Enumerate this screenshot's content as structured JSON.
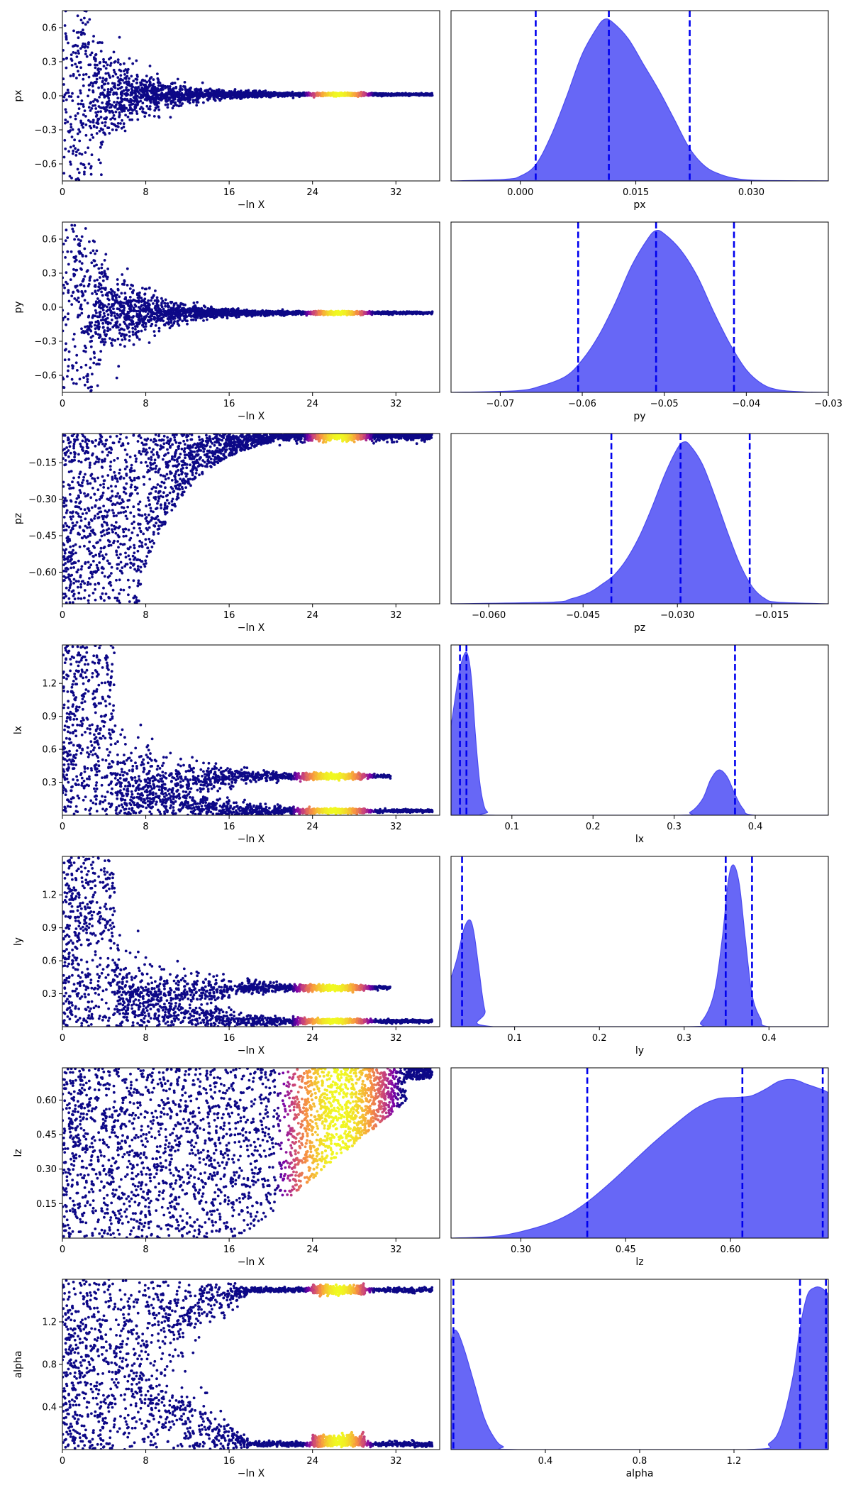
{
  "figure": {
    "layout": "7 rows x 2 columns; left column: trace scatter vs -ln X colored by sample weight (plasma colormap); right column: filled 1-D marginal posterior with dashed quantile lines"
  },
  "colors": {
    "low": "#0d0887",
    "mid": "#cc4778",
    "high": "#f0f921",
    "posterior_fill": "#5a5af5",
    "posterior_edge": "#4b4bf0",
    "quantile_line": "#0000ee"
  },
  "chart_data": [
    {
      "type": "scatter",
      "param": "px",
      "xlabel": "−ln X",
      "ylabel": "px",
      "xlim": [
        0,
        36.2
      ],
      "ylim": [
        -0.75,
        0.75
      ],
      "xticks": [
        0,
        8,
        16,
        24,
        32
      ],
      "xtick_labels": [
        "0",
        "8",
        "16",
        "24",
        "32"
      ],
      "yticks": [
        -0.6,
        -0.3,
        0.0,
        0.3,
        0.6
      ],
      "ytick_labels": [
        "−0.6",
        "−0.3",
        "0.0",
        "0.3",
        "0.6"
      ],
      "trace": {
        "kind": "funnel",
        "center": 0.012,
        "x_max": 35.5,
        "bright_x": [
          24,
          29
        ]
      }
    },
    {
      "type": "area",
      "param": "px",
      "xlabel": "px",
      "xlim": [
        -0.009,
        0.04
      ],
      "xticks": [
        0.0,
        0.015,
        0.03
      ],
      "xtick_labels": [
        "0.000",
        "0.015",
        "0.030"
      ],
      "density": {
        "x": [
          -0.009,
          -0.002,
          0.0,
          0.002,
          0.004,
          0.006,
          0.008,
          0.01,
          0.011,
          0.012,
          0.014,
          0.016,
          0.018,
          0.02,
          0.022,
          0.024,
          0.026,
          0.028,
          0.03,
          0.033,
          0.04
        ],
        "y": [
          0,
          0.01,
          0.03,
          0.1,
          0.28,
          0.52,
          0.78,
          0.95,
          1.0,
          0.98,
          0.88,
          0.72,
          0.56,
          0.38,
          0.2,
          0.09,
          0.04,
          0.015,
          0.005,
          0.002,
          0.001
        ]
      },
      "quantiles": [
        0.002,
        0.0115,
        0.022
      ]
    },
    {
      "type": "scatter",
      "param": "py",
      "xlabel": "−ln X",
      "ylabel": "py",
      "xlim": [
        0,
        36.2
      ],
      "ylim": [
        -0.75,
        0.75
      ],
      "xticks": [
        0,
        8,
        16,
        24,
        32
      ],
      "xtick_labels": [
        "0",
        "8",
        "16",
        "24",
        "32"
      ],
      "yticks": [
        -0.6,
        -0.3,
        0.0,
        0.3,
        0.6
      ],
      "ytick_labels": [
        "−0.6",
        "−0.3",
        "0.0",
        "0.3",
        "0.6"
      ],
      "trace": {
        "kind": "funnel",
        "center": -0.05,
        "x_max": 35.5,
        "bright_x": [
          24,
          29
        ]
      }
    },
    {
      "type": "area",
      "param": "py",
      "xlabel": "py",
      "xlim": [
        -0.076,
        -0.03
      ],
      "xticks": [
        -0.07,
        -0.06,
        -0.05,
        -0.04,
        -0.03
      ],
      "xtick_labels": [
        "−0.07",
        "−0.06",
        "−0.05",
        "−0.04",
        "−0.03"
      ],
      "density": {
        "x": [
          -0.076,
          -0.068,
          -0.065,
          -0.062,
          -0.06,
          -0.058,
          -0.056,
          -0.054,
          -0.052,
          -0.051,
          -0.05,
          -0.048,
          -0.046,
          -0.044,
          -0.042,
          -0.04,
          -0.038,
          -0.036,
          -0.033,
          -0.03
        ],
        "y": [
          0,
          0.01,
          0.04,
          0.1,
          0.2,
          0.35,
          0.55,
          0.78,
          0.95,
          1.0,
          0.98,
          0.88,
          0.72,
          0.5,
          0.3,
          0.14,
          0.05,
          0.015,
          0.003,
          0
        ]
      },
      "quantiles": [
        -0.0605,
        -0.051,
        -0.0415
      ]
    },
    {
      "type": "scatter",
      "param": "pz",
      "xlabel": "−ln X",
      "ylabel": "pz",
      "xlim": [
        0,
        36.2
      ],
      "ylim": [
        -0.73,
        -0.03
      ],
      "xticks": [
        0,
        8,
        16,
        24,
        32
      ],
      "xtick_labels": [
        "0",
        "8",
        "16",
        "24",
        "32"
      ],
      "yticks": [
        -0.6,
        -0.45,
        -0.3,
        -0.15
      ],
      "ytick_labels": [
        "−0.60",
        "−0.45",
        "−0.30",
        "−0.15"
      ],
      "trace": {
        "kind": "upper",
        "center": -0.03,
        "x_max": 35.5,
        "bright_x": [
          24,
          29
        ]
      }
    },
    {
      "type": "area",
      "param": "pz",
      "xlabel": "pz",
      "xlim": [
        -0.066,
        -0.006
      ],
      "xticks": [
        -0.06,
        -0.045,
        -0.03,
        -0.015
      ],
      "xtick_labels": [
        "−0.060",
        "−0.045",
        "−0.030",
        "−0.015"
      ],
      "density": {
        "x": [
          -0.066,
          -0.05,
          -0.047,
          -0.044,
          -0.042,
          -0.04,
          -0.038,
          -0.036,
          -0.034,
          -0.032,
          -0.03,
          -0.029,
          -0.028,
          -0.026,
          -0.024,
          -0.022,
          -0.02,
          -0.018,
          -0.016,
          -0.014,
          -0.006
        ],
        "y": [
          0,
          0.01,
          0.03,
          0.07,
          0.12,
          0.18,
          0.28,
          0.42,
          0.6,
          0.8,
          0.96,
          1.0,
          0.98,
          0.86,
          0.66,
          0.44,
          0.24,
          0.1,
          0.03,
          0.01,
          0
        ]
      },
      "quantiles": [
        -0.0405,
        -0.0295,
        -0.0185
      ]
    },
    {
      "type": "scatter",
      "param": "lx",
      "xlabel": "−ln X",
      "ylabel": "lx",
      "xlim": [
        0,
        36.2
      ],
      "ylim": [
        0.0,
        1.55
      ],
      "xticks": [
        0,
        8,
        16,
        24,
        32
      ],
      "xtick_labels": [
        "0",
        "8",
        "16",
        "24",
        "32"
      ],
      "yticks": [
        0.3,
        0.6,
        0.9,
        1.2
      ],
      "ytick_labels": [
        "0.3",
        "0.6",
        "0.9",
        "1.2"
      ],
      "trace": {
        "kind": "fork",
        "branches": [
          0.04,
          0.355
        ],
        "x_max": 35.5,
        "bright_x": [
          23,
          29
        ]
      }
    },
    {
      "type": "area",
      "param": "lx",
      "xlabel": "lx",
      "xlim": [
        0.025,
        0.49
      ],
      "xticks": [
        0.1,
        0.2,
        0.3,
        0.4
      ],
      "xtick_labels": [
        "0.1",
        "0.2",
        "0.3",
        "0.4"
      ],
      "density": {
        "x": [
          0.025,
          0.03,
          0.035,
          0.04,
          0.045,
          0.05,
          0.055,
          0.06,
          0.065,
          0.07,
          0.08,
          0.3,
          0.32,
          0.335,
          0.345,
          0.355,
          0.365,
          0.375,
          0.385,
          0.4,
          0.49
        ],
        "y": [
          0.55,
          0.72,
          0.88,
          0.98,
          1.0,
          0.85,
          0.5,
          0.22,
          0.07,
          0.02,
          0,
          0,
          0.02,
          0.1,
          0.22,
          0.28,
          0.24,
          0.13,
          0.04,
          0,
          0
        ]
      },
      "quantiles": [
        0.036,
        0.044,
        0.375
      ]
    },
    {
      "type": "scatter",
      "param": "ly",
      "xlabel": "−ln X",
      "ylabel": "ly",
      "xlim": [
        0,
        36.2
      ],
      "ylim": [
        0.0,
        1.55
      ],
      "xticks": [
        0,
        8,
        16,
        24,
        32
      ],
      "xtick_labels": [
        "0",
        "8",
        "16",
        "24",
        "32"
      ],
      "yticks": [
        0.3,
        0.6,
        0.9,
        1.2
      ],
      "ytick_labels": [
        "0.3",
        "0.6",
        "0.9",
        "1.2"
      ],
      "trace": {
        "kind": "fork",
        "branches": [
          0.05,
          0.355
        ],
        "x_max": 35.5,
        "bright_x": [
          23,
          29
        ]
      }
    },
    {
      "type": "area",
      "param": "ly",
      "xlabel": "ly",
      "xlim": [
        0.025,
        0.47
      ],
      "xticks": [
        0.1,
        0.2,
        0.3,
        0.4
      ],
      "xtick_labels": [
        "0.1",
        "0.2",
        "0.3",
        "0.4"
      ],
      "density": {
        "x": [
          0.025,
          0.032,
          0.04,
          0.047,
          0.052,
          0.058,
          0.065,
          0.075,
          0.3,
          0.32,
          0.335,
          0.345,
          0.352,
          0.358,
          0.365,
          0.372,
          0.38,
          0.39,
          0.4,
          0.47
        ],
        "y": [
          0.3,
          0.42,
          0.6,
          0.66,
          0.58,
          0.35,
          0.1,
          0.0,
          0.0,
          0.03,
          0.2,
          0.55,
          0.9,
          1.0,
          0.88,
          0.55,
          0.2,
          0.05,
          0.0,
          0.0
        ]
      },
      "quantiles": [
        0.038,
        0.349,
        0.38
      ]
    },
    {
      "type": "scatter",
      "param": "lz",
      "xlabel": "−ln X",
      "ylabel": "lz",
      "xlim": [
        0,
        36.2
      ],
      "ylim": [
        0.0,
        0.74
      ],
      "xticks": [
        0,
        8,
        16,
        24,
        32
      ],
      "xtick_labels": [
        "0",
        "8",
        "16",
        "24",
        "32"
      ],
      "yticks": [
        0.15,
        0.3,
        0.45,
        0.6
      ],
      "ytick_labels": [
        "0.15",
        "0.30",
        "0.45",
        "0.60"
      ],
      "trace": {
        "kind": "wedge",
        "x_max": 35.5,
        "bright_x": [
          22,
          31
        ]
      }
    },
    {
      "type": "area",
      "param": "lz",
      "xlabel": "lz",
      "xlim": [
        0.2,
        0.74
      ],
      "xticks": [
        0.3,
        0.45,
        0.6
      ],
      "xtick_labels": [
        "0.30",
        "0.45",
        "0.60"
      ],
      "density": {
        "x": [
          0.2,
          0.26,
          0.3,
          0.34,
          0.37,
          0.4,
          0.43,
          0.46,
          0.49,
          0.52,
          0.55,
          0.58,
          0.61,
          0.63,
          0.65,
          0.67,
          0.69,
          0.71,
          0.73,
          0.74
        ],
        "y": [
          0,
          0.01,
          0.04,
          0.09,
          0.15,
          0.24,
          0.35,
          0.47,
          0.59,
          0.7,
          0.8,
          0.86,
          0.87,
          0.88,
          0.92,
          0.97,
          0.98,
          0.95,
          0.92,
          0.9
        ]
      },
      "quantiles": [
        0.395,
        0.617,
        0.732
      ]
    },
    {
      "type": "scatter",
      "param": "alpha",
      "xlabel": "−ln X",
      "ylabel": "alpha",
      "xlim": [
        0,
        36.2
      ],
      "ylim": [
        0.0,
        1.6
      ],
      "xticks": [
        0,
        8,
        16,
        24,
        32
      ],
      "xtick_labels": [
        "0",
        "8",
        "16",
        "24",
        "32"
      ],
      "yticks": [
        0.4,
        0.8,
        1.2
      ],
      "ytick_labels": [
        "0.4",
        "0.8",
        "1.2"
      ],
      "trace": {
        "kind": "forkwide",
        "branches": [
          0.05,
          1.5
        ],
        "x_max": 35.5,
        "bright_x": [
          24,
          29
        ]
      }
    },
    {
      "type": "area",
      "param": "alpha",
      "xlabel": "alpha",
      "xlim": [
        0.0,
        1.6
      ],
      "xticks": [
        0.4,
        0.8,
        1.2
      ],
      "xtick_labels": [
        "0.4",
        "0.8",
        "1.2"
      ],
      "density": {
        "x": [
          0.0,
          0.01,
          0.03,
          0.06,
          0.1,
          0.14,
          0.18,
          0.22,
          0.3,
          1.25,
          1.35,
          1.4,
          1.45,
          1.48,
          1.51,
          1.54,
          1.57,
          1.6
        ],
        "y": [
          0.64,
          0.73,
          0.72,
          0.6,
          0.4,
          0.2,
          0.08,
          0.02,
          0,
          0,
          0.04,
          0.15,
          0.45,
          0.75,
          0.95,
          1.0,
          1.0,
          0.96
        ]
      },
      "quantiles": [
        0.01,
        1.48,
        1.59
      ]
    }
  ]
}
